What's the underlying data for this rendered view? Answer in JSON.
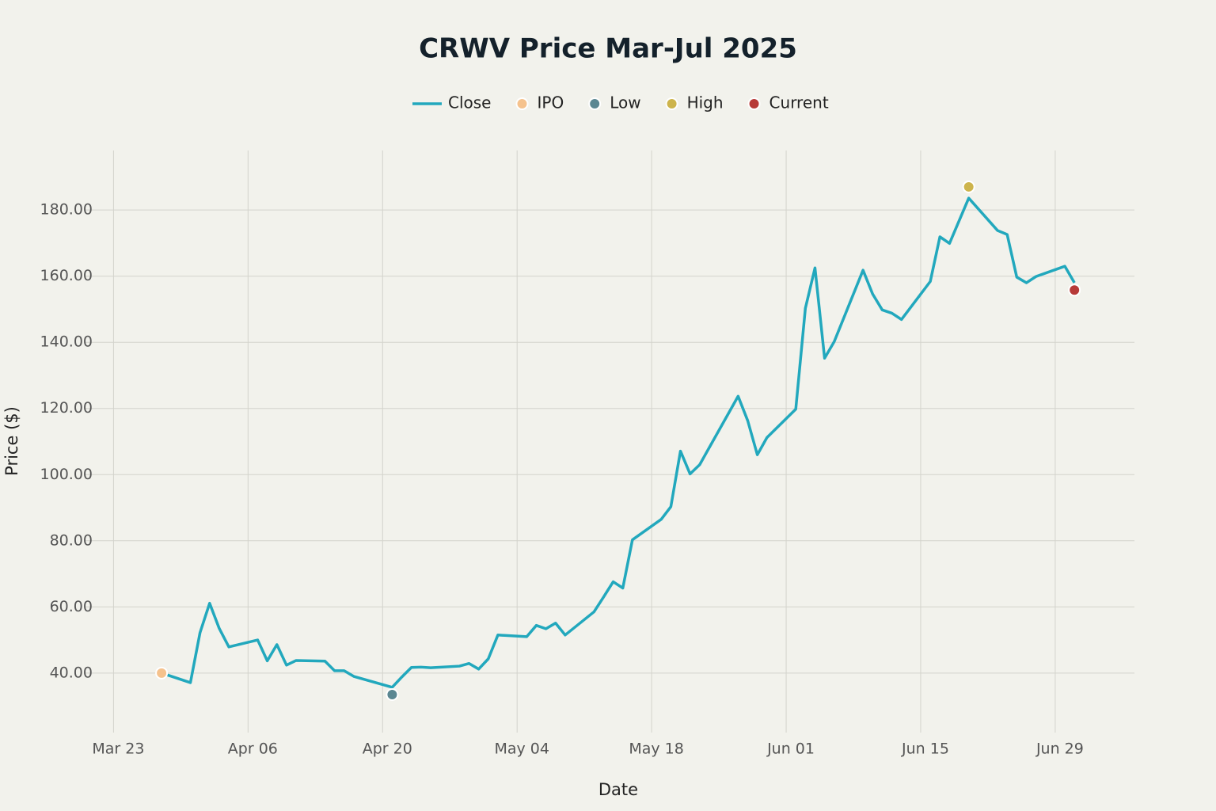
{
  "chart_data": {
    "type": "line",
    "title": "CRWV Price Mar-Jul 2025",
    "x_label": "Date",
    "y_label": "Price ($)",
    "xlim": [
      "03-20",
      "07-07"
    ],
    "xticks": [
      {
        "value": "03-23",
        "label": "Mar 23"
      },
      {
        "value": "04-06",
        "label": "Apr 06"
      },
      {
        "value": "04-20",
        "label": "Apr 20"
      },
      {
        "value": "05-04",
        "label": "May 04"
      },
      {
        "value": "05-18",
        "label": "May 18"
      },
      {
        "value": "06-01",
        "label": "Jun 01"
      },
      {
        "value": "06-15",
        "label": "Jun 15"
      },
      {
        "value": "06-29",
        "label": "Jun 29"
      }
    ],
    "ylim": [
      22,
      198
    ],
    "yticks": [
      {
        "value": 40,
        "label": "40.00"
      },
      {
        "value": 60,
        "label": "60.00"
      },
      {
        "value": 80,
        "label": "80.00"
      },
      {
        "value": 100,
        "label": "100.00"
      },
      {
        "value": 120,
        "label": "120.00"
      },
      {
        "value": 140,
        "label": "140.00"
      },
      {
        "value": 160,
        "label": "160.00"
      },
      {
        "value": 180,
        "label": "180.00"
      }
    ],
    "grid": true,
    "series": [
      {
        "name": "Close",
        "color": "#22a8bd",
        "mode": "line",
        "x": [
          "03-28",
          "03-31",
          "04-01",
          "04-02",
          "04-03",
          "04-04",
          "04-07",
          "04-08",
          "04-09",
          "04-10",
          "04-11",
          "04-14",
          "04-15",
          "04-16",
          "04-17",
          "04-21",
          "04-22",
          "04-23",
          "04-24",
          "04-25",
          "04-28",
          "04-29",
          "04-30",
          "05-01",
          "05-02",
          "05-05",
          "05-06",
          "05-07",
          "05-08",
          "05-09",
          "05-12",
          "05-13",
          "05-14",
          "05-15",
          "05-16",
          "05-19",
          "05-20",
          "05-21",
          "05-22",
          "05-23",
          "05-27",
          "05-28",
          "05-29",
          "05-30",
          "06-02",
          "06-03",
          "06-04",
          "06-05",
          "06-06",
          "06-09",
          "06-10",
          "06-11",
          "06-12",
          "06-13",
          "06-16",
          "06-17",
          "06-18",
          "06-20",
          "06-23",
          "06-24",
          "06-25",
          "06-26",
          "06-27",
          "06-30",
          "07-01"
        ],
        "values": [
          40,
          37.1,
          52.2,
          61.1,
          53.5,
          47.9,
          50,
          43.7,
          48.6,
          42.4,
          43.8,
          43.6,
          40.7,
          40.7,
          39,
          35.7,
          38.8,
          41.7,
          41.8,
          41.6,
          42.1,
          42.9,
          41.2,
          44.3,
          51.5,
          51,
          54.4,
          53.4,
          55.1,
          51.5,
          58.5,
          63,
          67.6,
          65.7,
          80.3,
          86.5,
          90.3,
          107.1,
          100.2,
          103,
          123.7,
          116.3,
          106,
          111.2,
          119.8,
          150.3,
          162.5,
          135.2,
          140.2,
          161.8,
          154.6,
          149.8,
          148.8,
          146.9,
          158.4,
          171.9,
          169.9,
          183.6,
          173.8,
          172.6,
          159.7,
          158,
          159.9,
          163,
          158
        ]
      },
      {
        "name": "IPO",
        "color": "#f5c28d",
        "mode": "marker",
        "x": [
          "03-28"
        ],
        "values": [
          40
        ]
      },
      {
        "name": "Low",
        "color": "#5b8792",
        "mode": "marker",
        "x": [
          "04-21"
        ],
        "values": [
          33.5
        ]
      },
      {
        "name": "High",
        "color": "#cdb44c",
        "mode": "marker",
        "x": [
          "06-20"
        ],
        "values": [
          187
        ]
      },
      {
        "name": "Current",
        "color": "#b73a38",
        "mode": "marker",
        "x": [
          "07-01"
        ],
        "values": [
          155.8
        ]
      }
    ]
  }
}
